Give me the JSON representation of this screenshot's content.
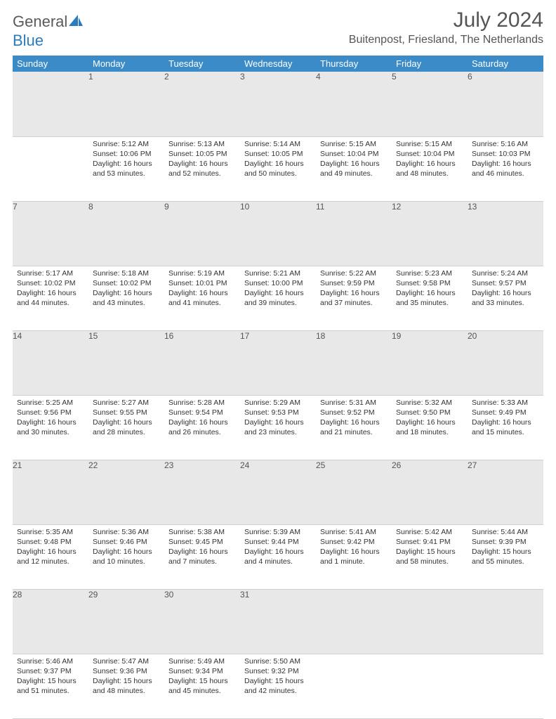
{
  "brand": {
    "word1": "General",
    "word2": "Blue"
  },
  "title": "July 2024",
  "location": "Buitenpost, Friesland, The Netherlands",
  "colors": {
    "header_bg": "#3b8bc8",
    "header_fg": "#ffffff",
    "daynum_bg": "#e8e8e8",
    "text": "#333333",
    "title": "#555555",
    "brand_gray": "#5a5a5a",
    "brand_blue": "#2b7bbd",
    "border": "#d0d0d0",
    "page_bg": "#ffffff"
  },
  "weekdays": [
    "Sunday",
    "Monday",
    "Tuesday",
    "Wednesday",
    "Thursday",
    "Friday",
    "Saturday"
  ],
  "weeks": [
    {
      "nums": [
        "",
        "1",
        "2",
        "3",
        "4",
        "5",
        "6"
      ],
      "cells": [
        null,
        {
          "sunrise": "Sunrise: 5:12 AM",
          "sunset": "Sunset: 10:06 PM",
          "day1": "Daylight: 16 hours",
          "day2": "and 53 minutes."
        },
        {
          "sunrise": "Sunrise: 5:13 AM",
          "sunset": "Sunset: 10:05 PM",
          "day1": "Daylight: 16 hours",
          "day2": "and 52 minutes."
        },
        {
          "sunrise": "Sunrise: 5:14 AM",
          "sunset": "Sunset: 10:05 PM",
          "day1": "Daylight: 16 hours",
          "day2": "and 50 minutes."
        },
        {
          "sunrise": "Sunrise: 5:15 AM",
          "sunset": "Sunset: 10:04 PM",
          "day1": "Daylight: 16 hours",
          "day2": "and 49 minutes."
        },
        {
          "sunrise": "Sunrise: 5:15 AM",
          "sunset": "Sunset: 10:04 PM",
          "day1": "Daylight: 16 hours",
          "day2": "and 48 minutes."
        },
        {
          "sunrise": "Sunrise: 5:16 AM",
          "sunset": "Sunset: 10:03 PM",
          "day1": "Daylight: 16 hours",
          "day2": "and 46 minutes."
        }
      ]
    },
    {
      "nums": [
        "7",
        "8",
        "9",
        "10",
        "11",
        "12",
        "13"
      ],
      "cells": [
        {
          "sunrise": "Sunrise: 5:17 AM",
          "sunset": "Sunset: 10:02 PM",
          "day1": "Daylight: 16 hours",
          "day2": "and 44 minutes."
        },
        {
          "sunrise": "Sunrise: 5:18 AM",
          "sunset": "Sunset: 10:02 PM",
          "day1": "Daylight: 16 hours",
          "day2": "and 43 minutes."
        },
        {
          "sunrise": "Sunrise: 5:19 AM",
          "sunset": "Sunset: 10:01 PM",
          "day1": "Daylight: 16 hours",
          "day2": "and 41 minutes."
        },
        {
          "sunrise": "Sunrise: 5:21 AM",
          "sunset": "Sunset: 10:00 PM",
          "day1": "Daylight: 16 hours",
          "day2": "and 39 minutes."
        },
        {
          "sunrise": "Sunrise: 5:22 AM",
          "sunset": "Sunset: 9:59 PM",
          "day1": "Daylight: 16 hours",
          "day2": "and 37 minutes."
        },
        {
          "sunrise": "Sunrise: 5:23 AM",
          "sunset": "Sunset: 9:58 PM",
          "day1": "Daylight: 16 hours",
          "day2": "and 35 minutes."
        },
        {
          "sunrise": "Sunrise: 5:24 AM",
          "sunset": "Sunset: 9:57 PM",
          "day1": "Daylight: 16 hours",
          "day2": "and 33 minutes."
        }
      ]
    },
    {
      "nums": [
        "14",
        "15",
        "16",
        "17",
        "18",
        "19",
        "20"
      ],
      "cells": [
        {
          "sunrise": "Sunrise: 5:25 AM",
          "sunset": "Sunset: 9:56 PM",
          "day1": "Daylight: 16 hours",
          "day2": "and 30 minutes."
        },
        {
          "sunrise": "Sunrise: 5:27 AM",
          "sunset": "Sunset: 9:55 PM",
          "day1": "Daylight: 16 hours",
          "day2": "and 28 minutes."
        },
        {
          "sunrise": "Sunrise: 5:28 AM",
          "sunset": "Sunset: 9:54 PM",
          "day1": "Daylight: 16 hours",
          "day2": "and 26 minutes."
        },
        {
          "sunrise": "Sunrise: 5:29 AM",
          "sunset": "Sunset: 9:53 PM",
          "day1": "Daylight: 16 hours",
          "day2": "and 23 minutes."
        },
        {
          "sunrise": "Sunrise: 5:31 AM",
          "sunset": "Sunset: 9:52 PM",
          "day1": "Daylight: 16 hours",
          "day2": "and 21 minutes."
        },
        {
          "sunrise": "Sunrise: 5:32 AM",
          "sunset": "Sunset: 9:50 PM",
          "day1": "Daylight: 16 hours",
          "day2": "and 18 minutes."
        },
        {
          "sunrise": "Sunrise: 5:33 AM",
          "sunset": "Sunset: 9:49 PM",
          "day1": "Daylight: 16 hours",
          "day2": "and 15 minutes."
        }
      ]
    },
    {
      "nums": [
        "21",
        "22",
        "23",
        "24",
        "25",
        "26",
        "27"
      ],
      "cells": [
        {
          "sunrise": "Sunrise: 5:35 AM",
          "sunset": "Sunset: 9:48 PM",
          "day1": "Daylight: 16 hours",
          "day2": "and 12 minutes."
        },
        {
          "sunrise": "Sunrise: 5:36 AM",
          "sunset": "Sunset: 9:46 PM",
          "day1": "Daylight: 16 hours",
          "day2": "and 10 minutes."
        },
        {
          "sunrise": "Sunrise: 5:38 AM",
          "sunset": "Sunset: 9:45 PM",
          "day1": "Daylight: 16 hours",
          "day2": "and 7 minutes."
        },
        {
          "sunrise": "Sunrise: 5:39 AM",
          "sunset": "Sunset: 9:44 PM",
          "day1": "Daylight: 16 hours",
          "day2": "and 4 minutes."
        },
        {
          "sunrise": "Sunrise: 5:41 AM",
          "sunset": "Sunset: 9:42 PM",
          "day1": "Daylight: 16 hours",
          "day2": "and 1 minute."
        },
        {
          "sunrise": "Sunrise: 5:42 AM",
          "sunset": "Sunset: 9:41 PM",
          "day1": "Daylight: 15 hours",
          "day2": "and 58 minutes."
        },
        {
          "sunrise": "Sunrise: 5:44 AM",
          "sunset": "Sunset: 9:39 PM",
          "day1": "Daylight: 15 hours",
          "day2": "and 55 minutes."
        }
      ]
    },
    {
      "nums": [
        "28",
        "29",
        "30",
        "31",
        "",
        "",
        ""
      ],
      "cells": [
        {
          "sunrise": "Sunrise: 5:46 AM",
          "sunset": "Sunset: 9:37 PM",
          "day1": "Daylight: 15 hours",
          "day2": "and 51 minutes."
        },
        {
          "sunrise": "Sunrise: 5:47 AM",
          "sunset": "Sunset: 9:36 PM",
          "day1": "Daylight: 15 hours",
          "day2": "and 48 minutes."
        },
        {
          "sunrise": "Sunrise: 5:49 AM",
          "sunset": "Sunset: 9:34 PM",
          "day1": "Daylight: 15 hours",
          "day2": "and 45 minutes."
        },
        {
          "sunrise": "Sunrise: 5:50 AM",
          "sunset": "Sunset: 9:32 PM",
          "day1": "Daylight: 15 hours",
          "day2": "and 42 minutes."
        },
        null,
        null,
        null
      ]
    }
  ]
}
